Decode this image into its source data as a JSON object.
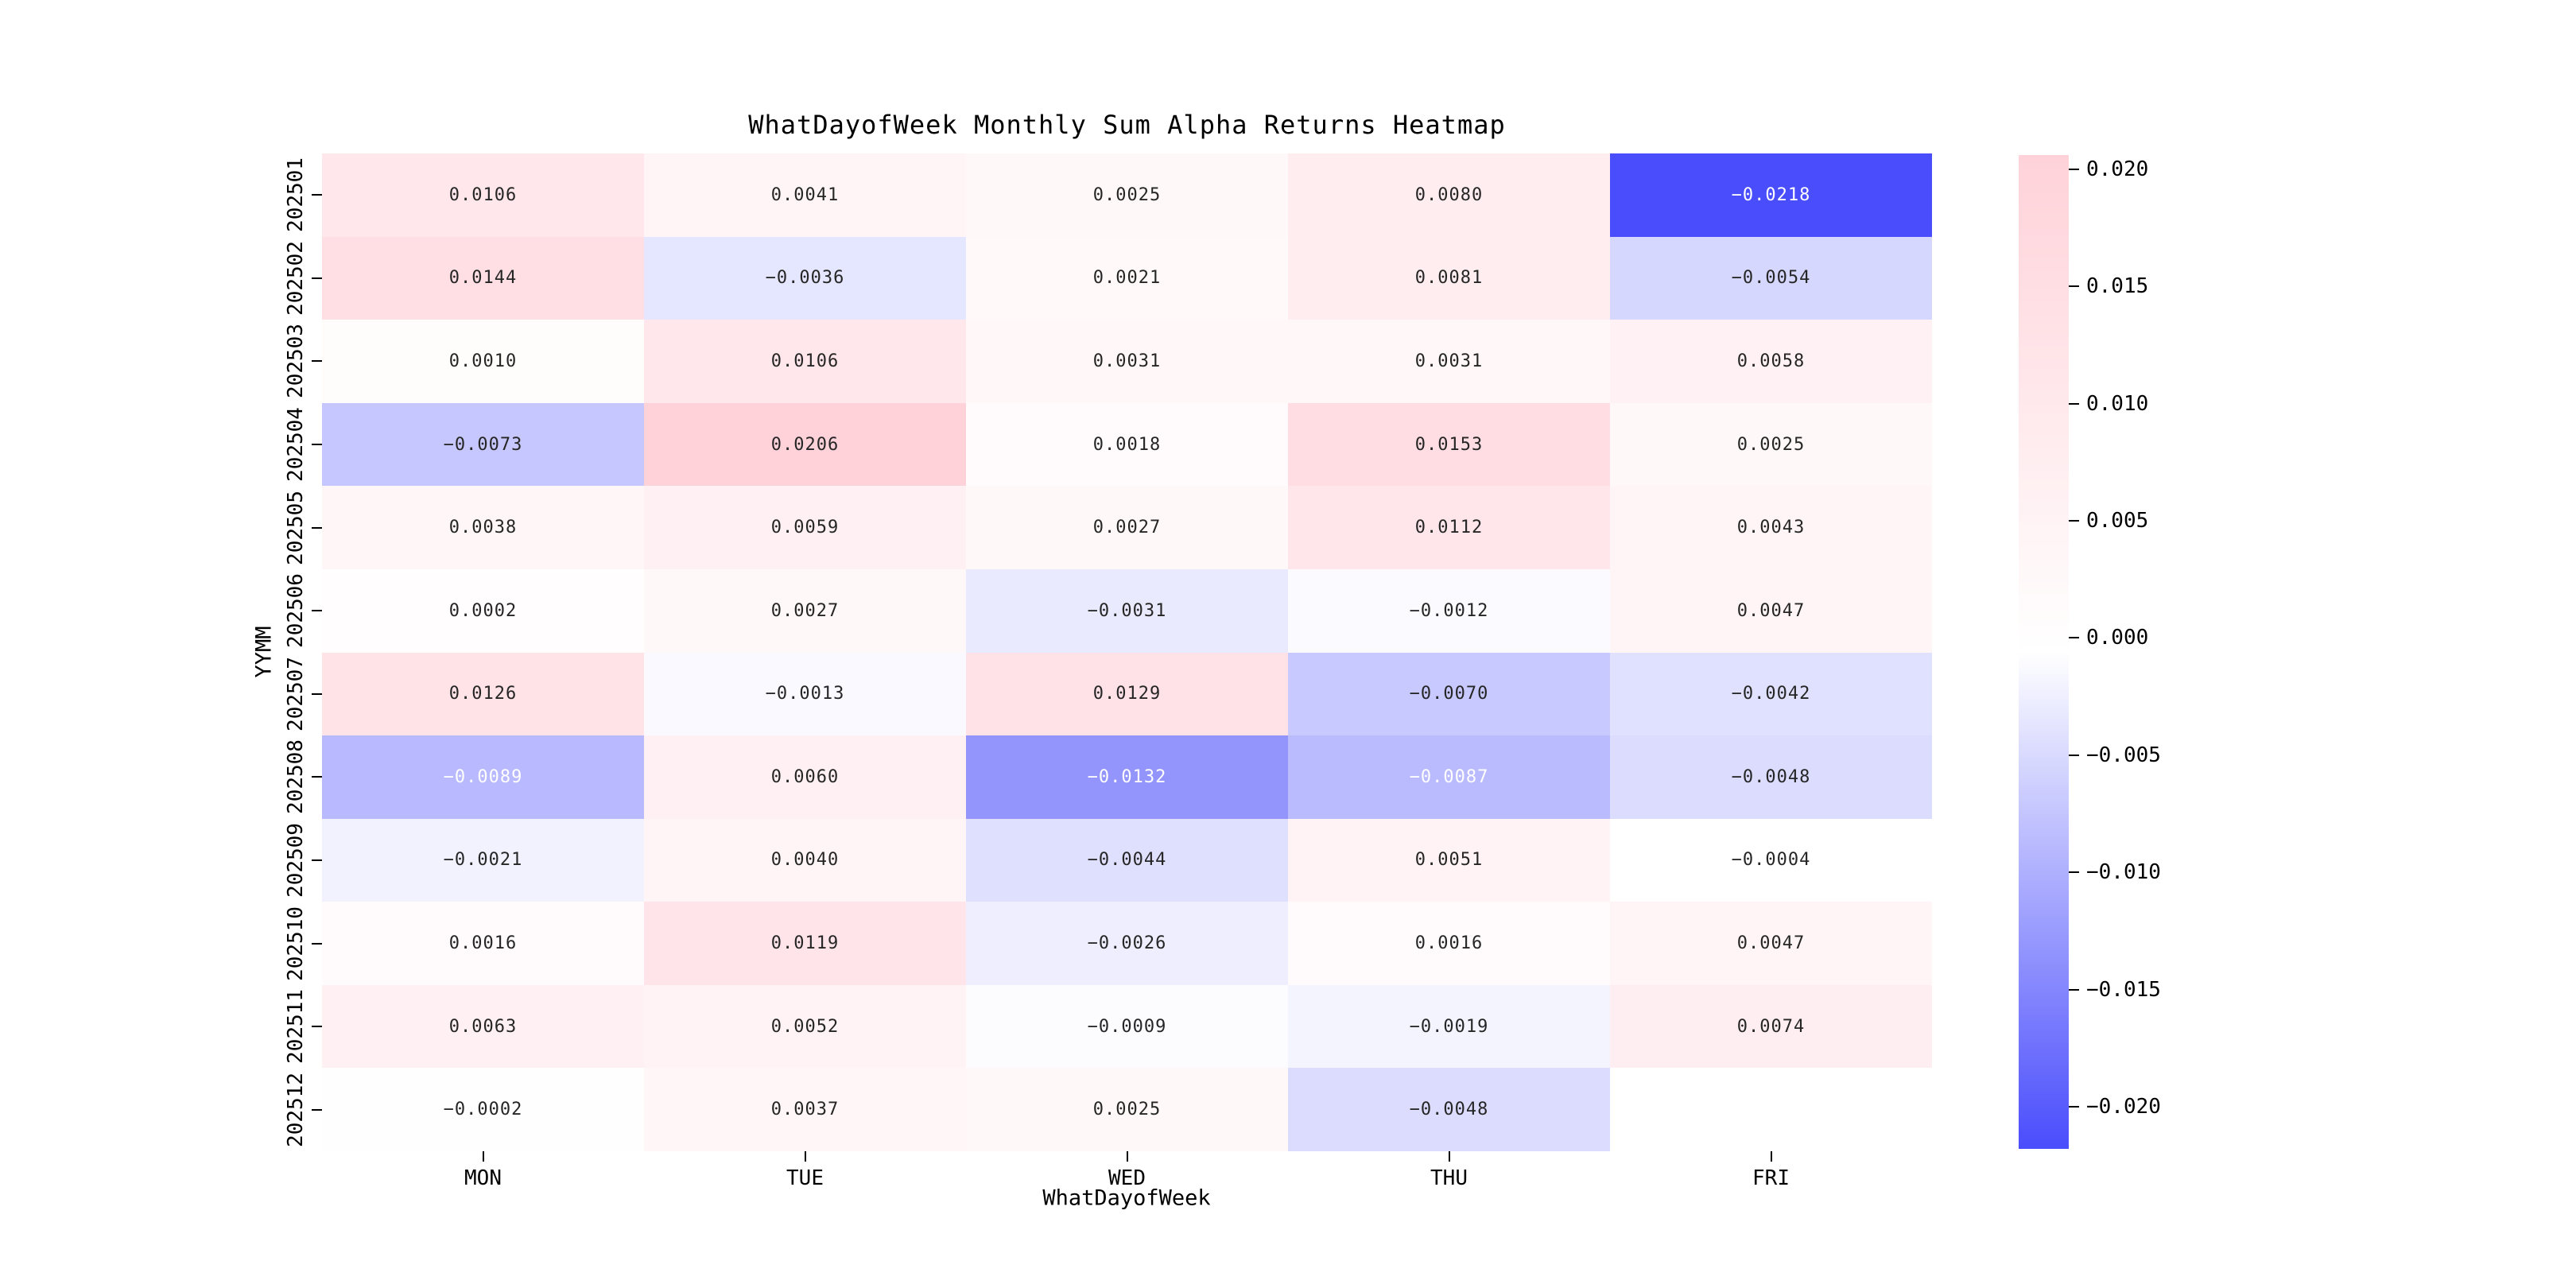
{
  "chart_data": {
    "type": "heatmap",
    "title": "WhatDayofWeek Monthly Sum Alpha Returns Heatmap",
    "xlabel": "WhatDayofWeek",
    "ylabel": "YYMM",
    "x_categories": [
      "MON",
      "TUE",
      "WED",
      "THU",
      "FRI"
    ],
    "y_categories": [
      "202501",
      "202502",
      "202503",
      "202504",
      "202505",
      "202506",
      "202507",
      "202508",
      "202509",
      "202510",
      "202511",
      "202512"
    ],
    "values": [
      [
        0.0106,
        0.0041,
        0.0025,
        0.008,
        -0.0218
      ],
      [
        0.0144,
        -0.0036,
        0.0021,
        0.0081,
        -0.0054
      ],
      [
        0.001,
        0.0106,
        0.0031,
        0.0031,
        0.0058
      ],
      [
        -0.0073,
        0.0206,
        0.0018,
        0.0153,
        0.0025
      ],
      [
        0.0038,
        0.0059,
        0.0027,
        0.0112,
        0.0043
      ],
      [
        0.0002,
        0.0027,
        -0.0031,
        -0.0012,
        0.0047
      ],
      [
        0.0126,
        -0.0013,
        0.0129,
        -0.007,
        -0.0042
      ],
      [
        -0.0089,
        0.006,
        -0.0132,
        -0.0087,
        -0.0048
      ],
      [
        -0.0021,
        0.004,
        -0.0044,
        0.0051,
        -0.0004
      ],
      [
        0.0016,
        0.0119,
        -0.0026,
        0.0016,
        0.0047
      ],
      [
        0.0063,
        0.0052,
        -0.0009,
        -0.0019,
        0.0074
      ],
      [
        -0.0002,
        0.0037,
        0.0025,
        -0.0048,
        null
      ]
    ],
    "colorbar": {
      "tick_values": [
        0.02,
        0.015,
        0.01,
        0.005,
        0.0,
        -0.005,
        -0.01,
        -0.015,
        -0.02
      ],
      "vmax": 0.0206,
      "vmin": -0.0218,
      "center": -0.0006,
      "position": "right"
    },
    "colors": {
      "positive_max": "#ffd2d9",
      "zero": "#ffffff",
      "negative_min": "#4a4dfc",
      "annotation_dark": "#262626",
      "annotation_light": "#ffffff"
    },
    "grid_lines": false,
    "missing_cells": [
      {
        "row": "202512",
        "col": "FRI"
      }
    ]
  }
}
